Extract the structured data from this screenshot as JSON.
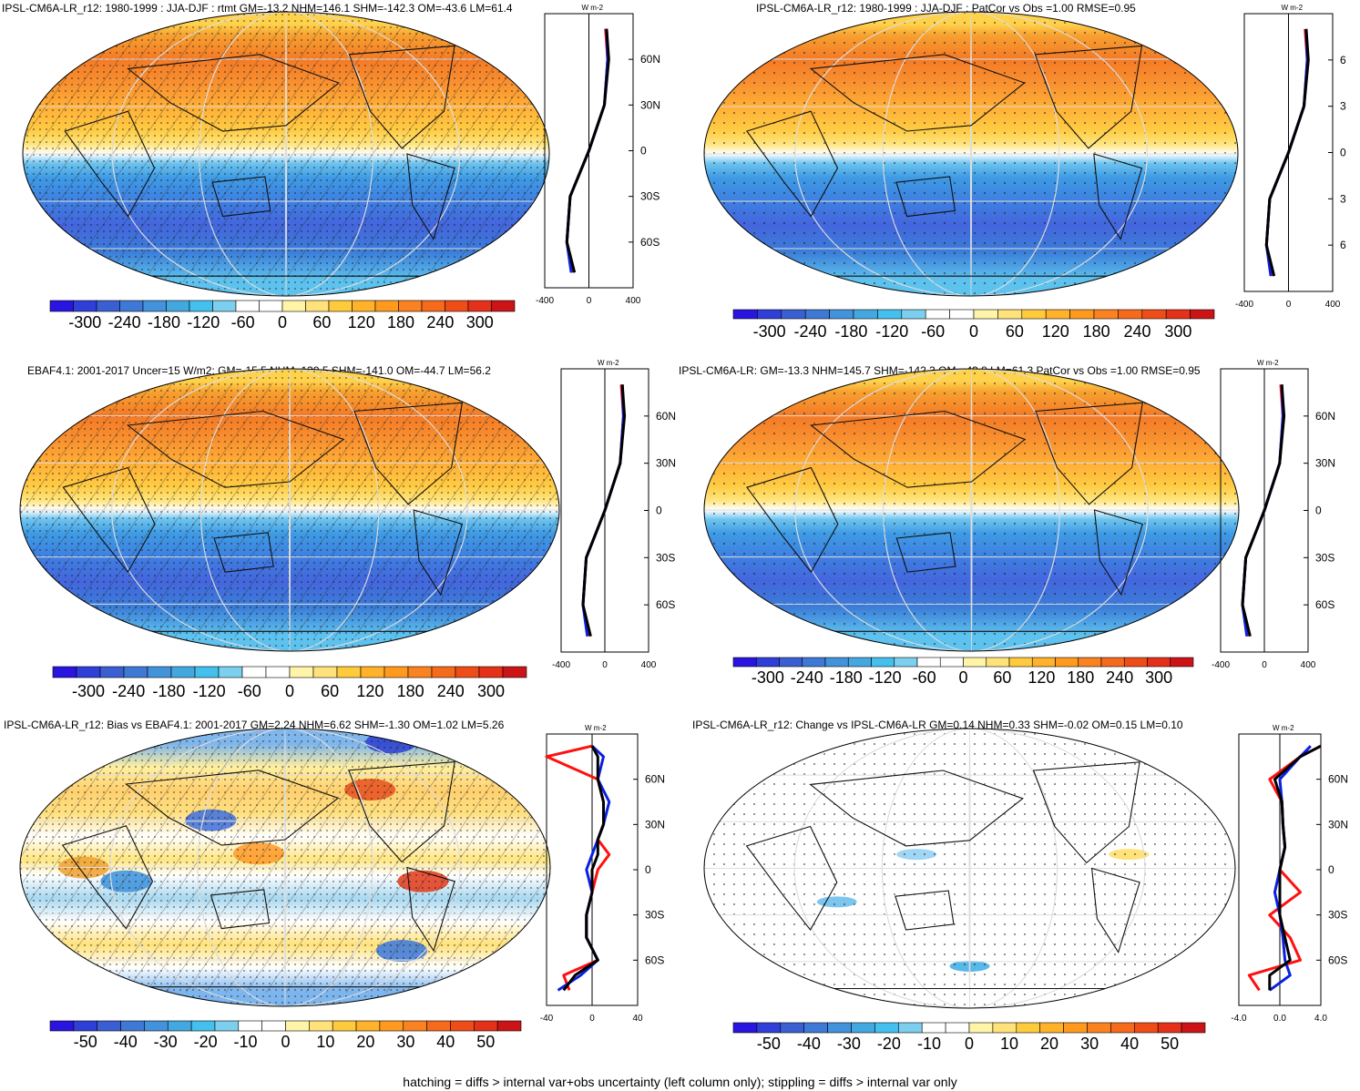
{
  "panels": [
    {
      "id": "p1",
      "title": "IPSL-CM6A-LR_r12: 1980-1999 : JJA-DJF : rtmt GM=-13.2 NHM=146.1 SHM=-142.3 OM=-43.6 LM=61.4",
      "kind": "mean",
      "hatch": true,
      "stipple": "dense",
      "colorbar": {
        "ticks": [
          "-300",
          "-240",
          "-180",
          "-120",
          "-60",
          "0",
          "60",
          "120",
          "180",
          "240",
          "300"
        ]
      },
      "profile_axis": {
        "xticks": [
          "-400",
          "0",
          "400"
        ],
        "yticks": [
          "60N",
          "30N",
          "0",
          "30S",
          "60S"
        ],
        "unit": "W m-2"
      }
    },
    {
      "id": "p2",
      "title": "IPSL-CM6A-LR_r12: 1980-1999 : JJA-DJF : PatCor vs Obs =1.00 RMSE=0.95",
      "kind": "mean",
      "hatch": false,
      "stipple": "sparse",
      "colorbar": {
        "ticks": [
          "-300",
          "-240",
          "-180",
          "-120",
          "-60",
          "0",
          "60",
          "120",
          "180",
          "240",
          "300"
        ]
      },
      "profile_axis": {
        "xticks": [
          "-400",
          "0",
          "400"
        ],
        "yticks": [
          "6",
          "3",
          "0",
          "3",
          "6"
        ],
        "unit": "W m-2"
      }
    },
    {
      "id": "p3",
      "title": "EBAF4.1: 2001-2017 Uncer=15 W/m2: GM=-15.5 NHM=139.5 SHM=-141.0 OM=-44.7 LM=56.2",
      "kind": "mean",
      "hatch": true,
      "stipple": "dense",
      "colorbar": {
        "ticks": [
          "-300",
          "-240",
          "-180",
          "-120",
          "-60",
          "0",
          "60",
          "120",
          "180",
          "240",
          "300"
        ]
      },
      "profile_axis": {
        "xticks": [
          "-400",
          "0",
          "400"
        ],
        "yticks": [
          "60N",
          "30N",
          "0",
          "30S",
          "60S"
        ],
        "unit": "W m-2"
      }
    },
    {
      "id": "p4",
      "title": "IPSL-CM6A-LR: GM=-13.3 NHM=145.7 SHM=-142.3 OM=-43.8 LM=61.3 PatCor vs Obs =1.00 RMSE=0.95",
      "kind": "mean",
      "hatch": false,
      "stipple": "sparse",
      "colorbar": {
        "ticks": [
          "-300",
          "-240",
          "-180",
          "-120",
          "-60",
          "0",
          "60",
          "120",
          "180",
          "240",
          "300"
        ]
      },
      "profile_axis": {
        "xticks": [
          "-400",
          "0",
          "400"
        ],
        "yticks": [
          "60N",
          "30N",
          "0",
          "30S",
          "60S"
        ],
        "unit": "W m-2"
      }
    },
    {
      "id": "p5",
      "title": "IPSL-CM6A-LR_r12: Bias vs EBAF4.1: 2001-2017 GM=2.24 NHM=6.62 SHM=-1.30 OM=1.02 LM=5.26",
      "kind": "bias",
      "hatch": true,
      "stipple": "dense",
      "colorbar": {
        "ticks": [
          "-50",
          "-40",
          "-30",
          "-20",
          "-10",
          "0",
          "10",
          "20",
          "30",
          "40",
          "50"
        ]
      },
      "profile_axis": {
        "xticks": [
          "-40",
          "0",
          "40"
        ],
        "yticks": [
          "60N",
          "30N",
          "0",
          "30S",
          "60S"
        ],
        "unit": "W m-2"
      }
    },
    {
      "id": "p6",
      "title": "IPSL-CM6A-LR_r12: Change vs IPSL-CM6A-LR GM=0.14 NHM=0.33 SHM=-0.02 OM=0.15 LM=0.10",
      "kind": "change",
      "hatch": false,
      "stipple": "sparse",
      "colorbar": {
        "ticks": [
          "-50",
          "-40",
          "-30",
          "-20",
          "-10",
          "0",
          "10",
          "20",
          "30",
          "40",
          "50"
        ]
      },
      "profile_axis": {
        "xticks": [
          "-4.0",
          "0.0",
          "4.0"
        ],
        "yticks": [
          "60N",
          "30N",
          "0",
          "30S",
          "60S"
        ],
        "unit": "W m-2"
      }
    }
  ],
  "colorbar_colors": [
    "#2a14e0",
    "#2f3fd8",
    "#3a5fd2",
    "#3f79d6",
    "#4292dc",
    "#44a8e0",
    "#44c0ee",
    "#7ccfee",
    "#ffffff",
    "#ffffff",
    "#fff4a8",
    "#ffe27a",
    "#ffcb3c",
    "#ffb22a",
    "#ff9a1e",
    "#fb8220",
    "#f66a1c",
    "#ef4d17",
    "#e5311a",
    "#cc1417"
  ],
  "footer": "hatching = diffs > internal var+obs uncertainty (left column only); stippling = diffs > internal var only",
  "chart_data": [
    {
      "type": "heatmap",
      "title": "IPSL-CM6A-LR_r12: 1980-1999 : JJA-DJF : rtmt GM=-13.2 NHM=146.1 SHM=-142.3 OM=-43.6 LM=61.4",
      "colorbar_range": [
        -300,
        300
      ],
      "zonal_profile": {
        "lat": [
          -80,
          -60,
          -30,
          0,
          30,
          60,
          80
        ],
        "model_r12": [
          -150,
          -200,
          -170,
          0,
          140,
          170,
          150
        ],
        "model": [
          -160,
          -200,
          -170,
          0,
          140,
          170,
          160
        ],
        "obs": [
          -130,
          -200,
          -170,
          0,
          140,
          180,
          160
        ]
      }
    },
    {
      "type": "heatmap",
      "title": "IPSL-CM6A-LR_r12: 1980-1999 : JJA-DJF : PatCor vs Obs =1.00 RMSE=0.95",
      "colorbar_range": [
        -300,
        300
      ],
      "zonal_profile": {
        "lat": [
          -80,
          -60,
          -30,
          0,
          30,
          60,
          80
        ],
        "model_r12": [
          -150,
          -200,
          -170,
          0,
          140,
          170,
          150
        ],
        "model": [
          -160,
          -200,
          -170,
          0,
          140,
          170,
          160
        ],
        "obs": [
          -130,
          -200,
          -170,
          0,
          140,
          180,
          160
        ]
      }
    },
    {
      "type": "heatmap",
      "title": "EBAF4.1: 2001-2017 Uncer=15 W/m2: GM=-15.5 NHM=139.5 SHM=-141.0 OM=-44.7 LM=56.2",
      "colorbar_range": [
        -300,
        300
      ],
      "zonal_profile": {
        "lat": [
          -80,
          -60,
          -30,
          0,
          30,
          60,
          80
        ],
        "model_r12": [
          -150,
          -200,
          -170,
          0,
          140,
          170,
          150
        ],
        "model": [
          -160,
          -200,
          -170,
          0,
          140,
          170,
          160
        ],
        "obs": [
          -130,
          -200,
          -170,
          0,
          140,
          180,
          160
        ]
      }
    },
    {
      "type": "heatmap",
      "title": "IPSL-CM6A-LR: GM=-13.3 NHM=145.7 SHM=-142.3 OM=-43.8 LM=61.3 PatCor vs Obs =1.00 RMSE=0.95",
      "colorbar_range": [
        -300,
        300
      ],
      "zonal_profile": {
        "lat": [
          -80,
          -60,
          -30,
          0,
          30,
          60,
          80
        ],
        "model_r12": [
          -150,
          -200,
          -170,
          0,
          140,
          170,
          150
        ],
        "model": [
          -160,
          -200,
          -170,
          0,
          140,
          170,
          160
        ],
        "obs": [
          -130,
          -200,
          -170,
          0,
          140,
          180,
          160
        ]
      }
    },
    {
      "type": "heatmap",
      "title": "IPSL-CM6A-LR_r12: Bias vs EBAF4.1: 2001-2017 GM=2.24 NHM=6.62 SHM=-1.30 OM=1.02 LM=5.26",
      "colorbar_range": [
        -50,
        50
      ],
      "zonal_profile": {
        "lat": [
          -80,
          -70,
          -60,
          -45,
          -30,
          -15,
          0,
          10,
          20,
          30,
          45,
          60,
          75,
          82
        ],
        "model_r12": [
          -20,
          -25,
          5,
          -5,
          -5,
          0,
          5,
          15,
          5,
          10,
          10,
          5,
          -40,
          0
        ],
        "model": [
          -30,
          -10,
          5,
          -5,
          -5,
          0,
          -5,
          0,
          5,
          10,
          15,
          5,
          10,
          0
        ],
        "obs": [
          -25,
          -15,
          5,
          -5,
          -5,
          0,
          0,
          5,
          5,
          10,
          10,
          5,
          5,
          0
        ]
      }
    },
    {
      "type": "heatmap",
      "title": "IPSL-CM6A-LR_r12: Change vs IPSL-CM6A-LR GM=0.14 NHM=0.33 SHM=-0.02 OM=0.15 LM=0.10",
      "colorbar_range": [
        -50,
        50
      ],
      "zonal_profile": {
        "lat": [
          -80,
          -70,
          -60,
          -45,
          -30,
          -15,
          0,
          15,
          30,
          45,
          60,
          75,
          82
        ],
        "model_r12": [
          -2,
          -3,
          2,
          1,
          -1,
          2,
          0,
          0.5,
          0.3,
          0.2,
          -1,
          2,
          4
        ],
        "model": [
          -1,
          1,
          0.5,
          0.3,
          0,
          -0.5,
          0,
          0.5,
          0.3,
          0.2,
          0,
          2,
          3
        ],
        "obs": [
          -1,
          -1,
          1,
          0.5,
          0,
          0,
          0,
          0.5,
          0.3,
          0.2,
          -0.5,
          2,
          4
        ]
      }
    }
  ]
}
